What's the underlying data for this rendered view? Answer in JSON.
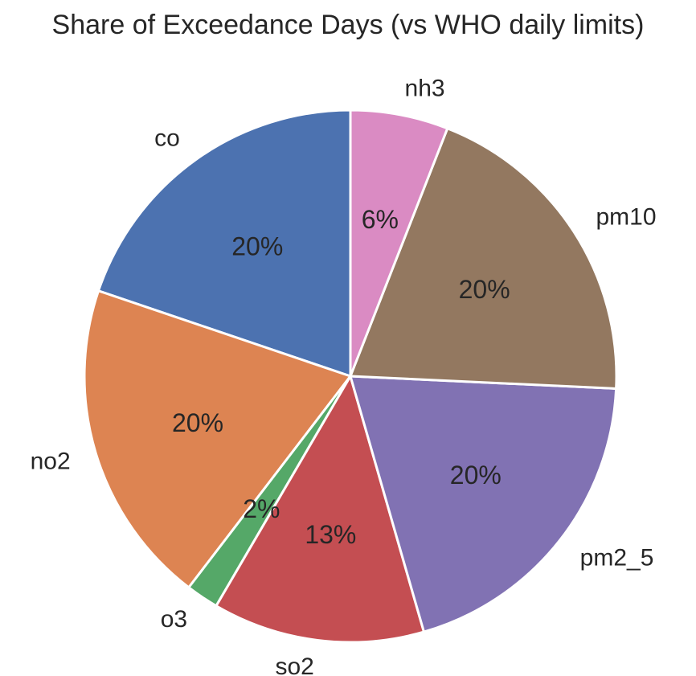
{
  "chart_data": {
    "type": "pie",
    "title": "Share of Exceedance Days (vs WHO daily limits)",
    "start_angle_deg": 90,
    "direction": "counterclockwise",
    "slices": [
      {
        "label": "co",
        "value": 20,
        "pct_label": "20%",
        "color": "#4c72b0"
      },
      {
        "label": "no2",
        "value": 20,
        "pct_label": "20%",
        "color": "#dd8452"
      },
      {
        "label": "o3",
        "value": 2,
        "pct_label": "2%",
        "color": "#55a868"
      },
      {
        "label": "so2",
        "value": 13,
        "pct_label": "13%",
        "color": "#c44e52"
      },
      {
        "label": "pm2_5",
        "value": 20,
        "pct_label": "20%",
        "color": "#8172b3"
      },
      {
        "label": "pm10",
        "value": 20,
        "pct_label": "20%",
        "color": "#937860"
      },
      {
        "label": "nh3",
        "value": 6,
        "pct_label": "6%",
        "color": "#da8bc3"
      }
    ]
  }
}
